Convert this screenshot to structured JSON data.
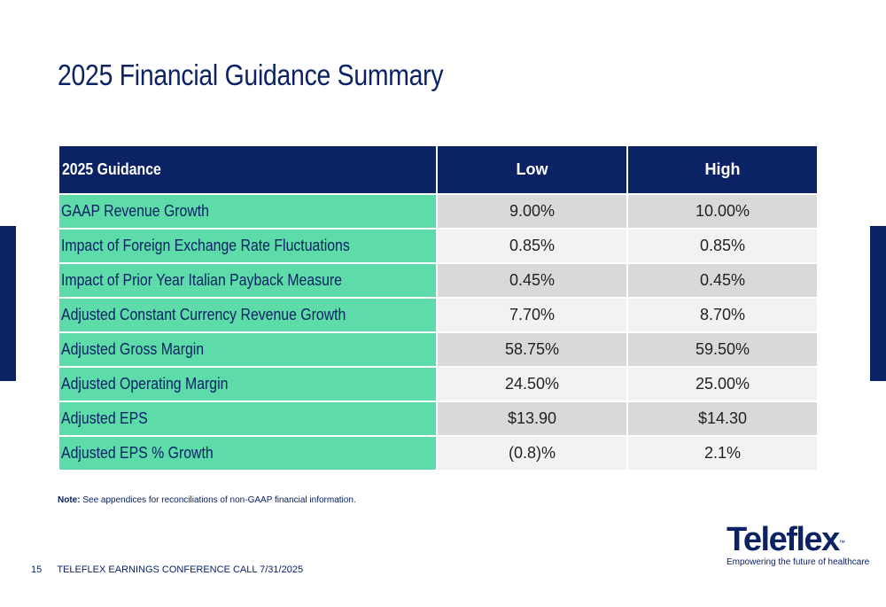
{
  "title": "2025 Financial Guidance Summary",
  "table": {
    "header": [
      "2025 Guidance",
      "Low",
      "High"
    ],
    "rows": [
      [
        "GAAP Revenue Growth",
        "9.00%",
        "10.00%"
      ],
      [
        "Impact of Foreign Exchange Rate Fluctuations",
        "0.85%",
        "0.85%"
      ],
      [
        "Impact of Prior Year Italian Payback Measure",
        "0.45%",
        "0.45%"
      ],
      [
        "Adjusted Constant Currency Revenue Growth",
        "7.70%",
        "8.70%"
      ],
      [
        "Adjusted Gross Margin",
        "58.75%",
        "59.50%"
      ],
      [
        "Adjusted Operating Margin",
        "24.50%",
        "25.00%"
      ],
      [
        "Adjusted EPS",
        "$13.90",
        "$14.30"
      ],
      [
        "Adjusted EPS % Growth",
        "(0.8)%",
        "2.1%"
      ]
    ]
  },
  "note": {
    "label": "Note:",
    "text": "See appendices for reconciliations of non-GAAP financial information."
  },
  "footer": {
    "page": "15",
    "text": "TELEFLEX EARNINGS CONFERENCE CALL 7/31/2025"
  },
  "logo": {
    "name": "Teleflex",
    "tm": "™",
    "tagline": "Empowering the future of healthcare"
  }
}
